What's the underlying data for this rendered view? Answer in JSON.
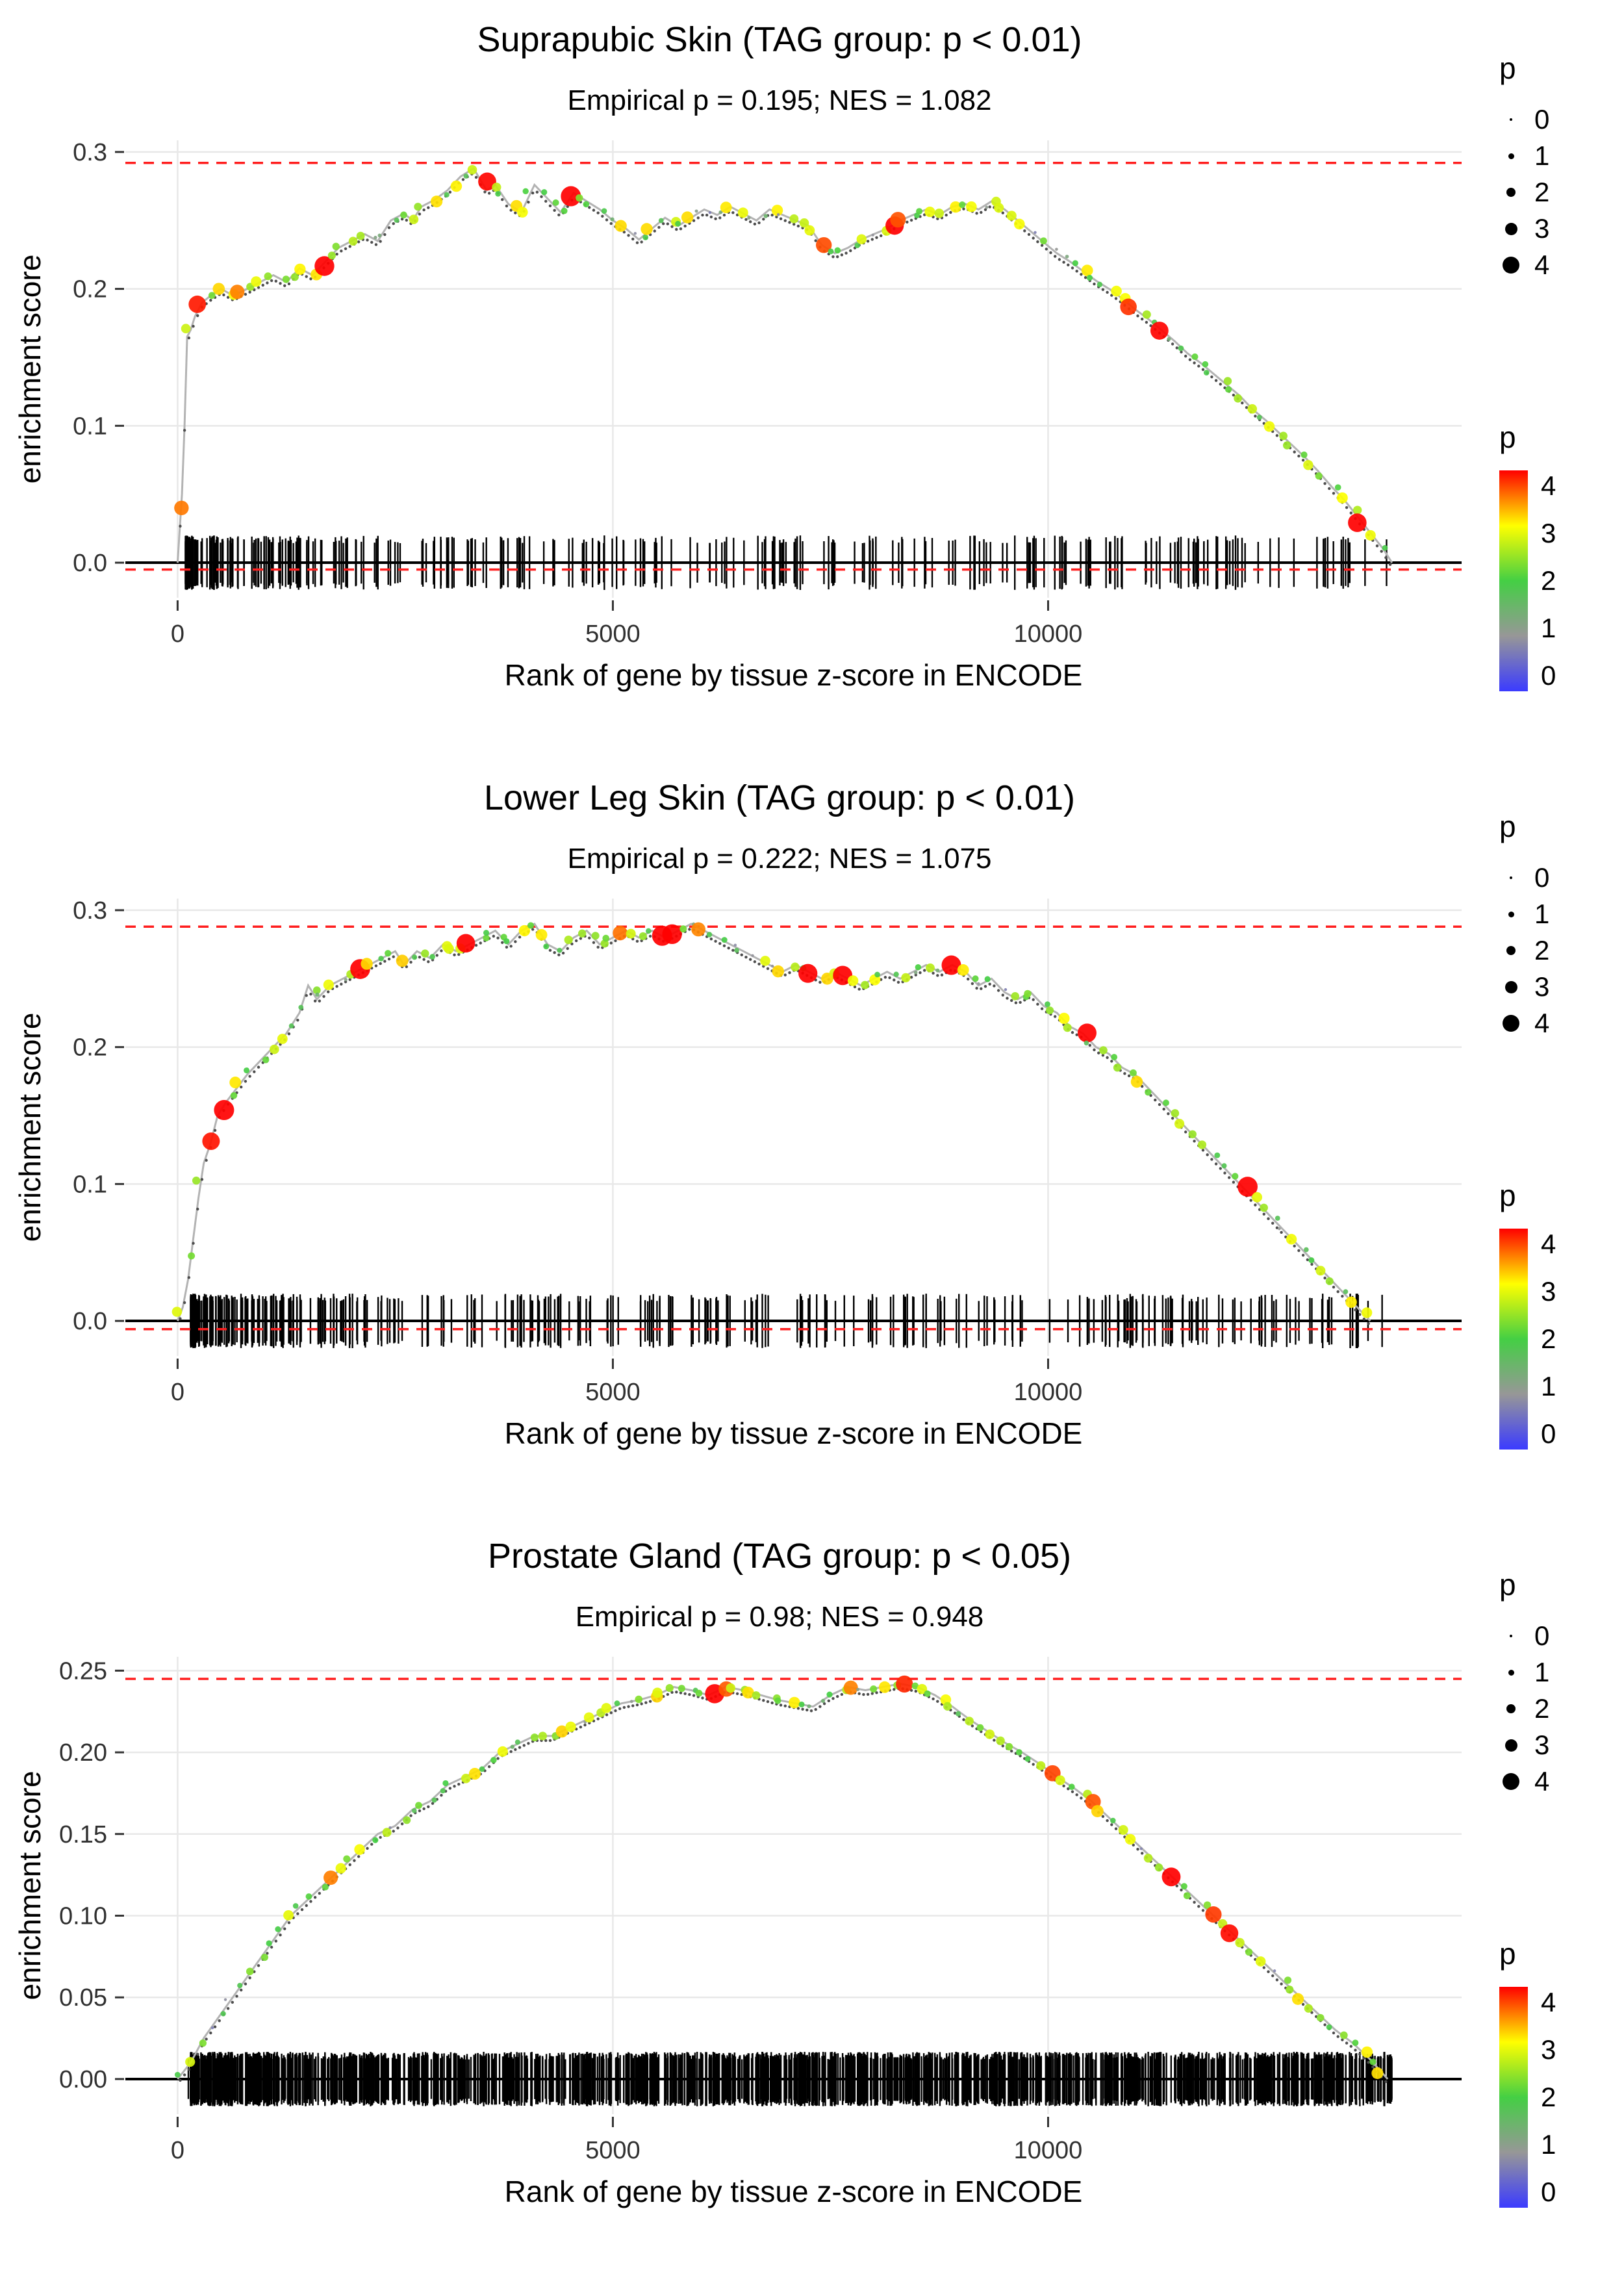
{
  "colors": {
    "dashed_line": "#ff1f1f",
    "curve_line": "#b3b3b3",
    "small_dot": "#4d4d4d",
    "rug": "#000000",
    "gridline": "#e8e8e8",
    "axis_text": "#303030",
    "zero_line": "#000000",
    "colormap_stops": [
      [
        "0",
        "#3b3bff"
      ],
      [
        "1",
        "#979797"
      ],
      [
        "2",
        "#44cf44"
      ],
      [
        "3",
        "#ffff00"
      ],
      [
        "4",
        "#ff0000"
      ]
    ]
  },
  "legend": {
    "size_title": "p",
    "size_labels": [
      "0",
      "1",
      "2",
      "3",
      "4"
    ],
    "color_title": "p",
    "color_labels": [
      "4",
      "3",
      "2",
      "1",
      "0"
    ]
  },
  "chart_data": [
    {
      "type": "line",
      "title": "Suprapubic Skin (TAG group: p < 0.01)",
      "subtitle": "Empirical p = 0.195; NES = 1.082",
      "xlabel": "Rank of gene by tissue z-score in ENCODE",
      "ylabel": "enrichment score",
      "legend_position": "right",
      "grid": true,
      "xlim": [
        -600,
        14750
      ],
      "ylim": [
        -0.0256,
        0.3085
      ],
      "x_ticks": [
        0,
        5000,
        10000
      ],
      "y_ticks": [
        0.0,
        0.1,
        0.2,
        0.3
      ],
      "y_tick_labels": [
        "0.0",
        "0.1",
        "0.2",
        "0.3"
      ],
      "dashed_max": 0.292,
      "dashed_min": -0.005,
      "rug_n": 340,
      "rug_cluster_frac": 0.3,
      "rug_cluster_start": 90,
      "rug_cluster_span": 1600,
      "rug_min": 100,
      "rug_max": 13900,
      "point_step": 115,
      "small_dot_step": 50,
      "curve": [
        [
          0,
          0
        ],
        [
          50,
          0.05
        ],
        [
          80,
          0.1
        ],
        [
          110,
          0.165
        ],
        [
          150,
          0.17
        ],
        [
          200,
          0.18
        ],
        [
          280,
          0.19
        ],
        [
          380,
          0.195
        ],
        [
          500,
          0.2
        ],
        [
          640,
          0.195
        ],
        [
          800,
          0.2
        ],
        [
          950,
          0.205
        ],
        [
          1100,
          0.21
        ],
        [
          1250,
          0.205
        ],
        [
          1400,
          0.215
        ],
        [
          1550,
          0.21
        ],
        [
          1700,
          0.22
        ],
        [
          1850,
          0.23
        ],
        [
          2000,
          0.235
        ],
        [
          2150,
          0.24
        ],
        [
          2300,
          0.235
        ],
        [
          2450,
          0.25
        ],
        [
          2600,
          0.255
        ],
        [
          2700,
          0.25
        ],
        [
          2800,
          0.26
        ],
        [
          2950,
          0.265
        ],
        [
          3100,
          0.272
        ],
        [
          3250,
          0.282
        ],
        [
          3400,
          0.288
        ],
        [
          3550,
          0.272
        ],
        [
          3650,
          0.276
        ],
        [
          3800,
          0.262
        ],
        [
          3950,
          0.256
        ],
        [
          4100,
          0.276
        ],
        [
          4250,
          0.266
        ],
        [
          4400,
          0.256
        ],
        [
          4550,
          0.27
        ],
        [
          4700,
          0.264
        ],
        [
          4850,
          0.258
        ],
        [
          5000,
          0.25
        ],
        [
          5150,
          0.244
        ],
        [
          5300,
          0.236
        ],
        [
          5450,
          0.244
        ],
        [
          5600,
          0.252
        ],
        [
          5750,
          0.246
        ],
        [
          5900,
          0.252
        ],
        [
          6050,
          0.258
        ],
        [
          6200,
          0.254
        ],
        [
          6350,
          0.26
        ],
        [
          6500,
          0.255
        ],
        [
          6650,
          0.25
        ],
        [
          6800,
          0.258
        ],
        [
          6950,
          0.254
        ],
        [
          7100,
          0.25
        ],
        [
          7250,
          0.246
        ],
        [
          7400,
          0.232
        ],
        [
          7550,
          0.226
        ],
        [
          7700,
          0.23
        ],
        [
          7850,
          0.236
        ],
        [
          8000,
          0.24
        ],
        [
          8150,
          0.244
        ],
        [
          8300,
          0.25
        ],
        [
          8450,
          0.254
        ],
        [
          8600,
          0.258
        ],
        [
          8750,
          0.254
        ],
        [
          8900,
          0.26
        ],
        [
          9050,
          0.262
        ],
        [
          9200,
          0.258
        ],
        [
          9350,
          0.264
        ],
        [
          9500,
          0.258
        ],
        [
          9650,
          0.25
        ],
        [
          9800,
          0.242
        ],
        [
          9950,
          0.234
        ],
        [
          10100,
          0.226
        ],
        [
          10250,
          0.22
        ],
        [
          10400,
          0.213
        ],
        [
          10550,
          0.206
        ],
        [
          10700,
          0.2
        ],
        [
          10850,
          0.193
        ],
        [
          11000,
          0.185
        ],
        [
          11150,
          0.178
        ],
        [
          11300,
          0.17
        ],
        [
          11450,
          0.162
        ],
        [
          11600,
          0.153
        ],
        [
          11750,
          0.146
        ],
        [
          11900,
          0.138
        ],
        [
          12050,
          0.13
        ],
        [
          12200,
          0.122
        ],
        [
          12350,
          0.112
        ],
        [
          12500,
          0.104
        ],
        [
          12650,
          0.095
        ],
        [
          12800,
          0.086
        ],
        [
          12950,
          0.077
        ],
        [
          13100,
          0.067
        ],
        [
          13250,
          0.056
        ],
        [
          13400,
          0.046
        ],
        [
          13550,
          0.034
        ],
        [
          13700,
          0.022
        ],
        [
          13850,
          0.01
        ],
        [
          13950,
          0
        ]
      ]
    },
    {
      "type": "line",
      "title": "Lower Leg Skin (TAG group: p < 0.01)",
      "subtitle": "Empirical p = 0.222; NES = 1.075",
      "xlabel": "Rank of gene by tissue z-score in ENCODE",
      "ylabel": "enrichment score",
      "legend_position": "right",
      "grid": true,
      "xlim": [
        -600,
        14750
      ],
      "ylim": [
        -0.0256,
        0.3085
      ],
      "x_ticks": [
        0,
        5000,
        10000
      ],
      "y_ticks": [
        0.0,
        0.1,
        0.2,
        0.3
      ],
      "y_tick_labels": [
        "0.0",
        "0.1",
        "0.2",
        "0.3"
      ],
      "dashed_max": 0.288,
      "dashed_min": -0.006,
      "rug_n": 360,
      "rug_cluster_frac": 0.32,
      "rug_cluster_start": 150,
      "rug_cluster_span": 2200,
      "rug_min": 120,
      "rug_max": 13850,
      "point_step": 115,
      "small_dot_step": 50,
      "curve": [
        [
          0,
          0
        ],
        [
          60,
          0.01
        ],
        [
          120,
          0.03
        ],
        [
          180,
          0.06
        ],
        [
          240,
          0.09
        ],
        [
          300,
          0.115
        ],
        [
          380,
          0.13
        ],
        [
          460,
          0.15
        ],
        [
          560,
          0.16
        ],
        [
          680,
          0.17
        ],
        [
          800,
          0.18
        ],
        [
          950,
          0.19
        ],
        [
          1100,
          0.2
        ],
        [
          1250,
          0.21
        ],
        [
          1400,
          0.225
        ],
        [
          1500,
          0.245
        ],
        [
          1600,
          0.235
        ],
        [
          1750,
          0.245
        ],
        [
          1900,
          0.25
        ],
        [
          2050,
          0.255
        ],
        [
          2200,
          0.26
        ],
        [
          2350,
          0.265
        ],
        [
          2500,
          0.27
        ],
        [
          2600,
          0.26
        ],
        [
          2750,
          0.27
        ],
        [
          2900,
          0.265
        ],
        [
          3050,
          0.275
        ],
        [
          3200,
          0.27
        ],
        [
          3350,
          0.275
        ],
        [
          3500,
          0.28
        ],
        [
          3650,
          0.285
        ],
        [
          3800,
          0.275
        ],
        [
          3950,
          0.285
        ],
        [
          4100,
          0.29
        ],
        [
          4250,
          0.275
        ],
        [
          4400,
          0.27
        ],
        [
          4550,
          0.28
        ],
        [
          4700,
          0.285
        ],
        [
          4850,
          0.275
        ],
        [
          5000,
          0.28
        ],
        [
          5150,
          0.285
        ],
        [
          5300,
          0.28
        ],
        [
          5450,
          0.285
        ],
        [
          5600,
          0.28
        ],
        [
          5750,
          0.285
        ],
        [
          5900,
          0.29
        ],
        [
          6050,
          0.285
        ],
        [
          6200,
          0.28
        ],
        [
          6350,
          0.275
        ],
        [
          6500,
          0.27
        ],
        [
          6650,
          0.265
        ],
        [
          6800,
          0.26
        ],
        [
          6950,
          0.255
        ],
        [
          7100,
          0.26
        ],
        [
          7250,
          0.255
        ],
        [
          7400,
          0.25
        ],
        [
          7550,
          0.255
        ],
        [
          7700,
          0.25
        ],
        [
          7850,
          0.245
        ],
        [
          8000,
          0.25
        ],
        [
          8150,
          0.255
        ],
        [
          8300,
          0.25
        ],
        [
          8450,
          0.255
        ],
        [
          8600,
          0.26
        ],
        [
          8750,
          0.255
        ],
        [
          8900,
          0.26
        ],
        [
          9050,
          0.255
        ],
        [
          9200,
          0.245
        ],
        [
          9350,
          0.25
        ],
        [
          9500,
          0.24
        ],
        [
          9650,
          0.235
        ],
        [
          9800,
          0.24
        ],
        [
          9950,
          0.23
        ],
        [
          10100,
          0.225
        ],
        [
          10250,
          0.215
        ],
        [
          10400,
          0.21
        ],
        [
          10550,
          0.2
        ],
        [
          10700,
          0.195
        ],
        [
          10850,
          0.185
        ],
        [
          11000,
          0.18
        ],
        [
          11150,
          0.17
        ],
        [
          11300,
          0.16
        ],
        [
          11450,
          0.15
        ],
        [
          11600,
          0.14
        ],
        [
          11750,
          0.13
        ],
        [
          11900,
          0.12
        ],
        [
          12050,
          0.11
        ],
        [
          12200,
          0.1
        ],
        [
          12350,
          0.09
        ],
        [
          12500,
          0.08
        ],
        [
          12650,
          0.07
        ],
        [
          12800,
          0.06
        ],
        [
          12950,
          0.05
        ],
        [
          13100,
          0.04
        ],
        [
          13250,
          0.03
        ],
        [
          13400,
          0.02
        ],
        [
          13550,
          0.01
        ],
        [
          13700,
          0
        ]
      ]
    },
    {
      "type": "line",
      "title": "Prostate Gland (TAG group: p < 0.05)",
      "subtitle": "Empirical p = 0.98; NES = 0.948",
      "xlabel": "Rank of gene by tissue z-score in ENCODE",
      "ylabel": "enrichment score",
      "legend_position": "right",
      "grid": true,
      "xlim": [
        -600,
        14750
      ],
      "ylim": [
        -0.0215,
        0.2585
      ],
      "x_ticks": [
        0,
        5000,
        10000
      ],
      "y_ticks": [
        0.0,
        0.05,
        0.1,
        0.15,
        0.2,
        0.25
      ],
      "y_tick_labels": [
        "0.00",
        "0.05",
        "0.10",
        "0.15",
        "0.20",
        "0.25"
      ],
      "dashed_max": 0.245,
      "dashed_min": null,
      "rug_n": 1600,
      "rug_cluster_frac": 0.1,
      "rug_cluster_start": 150,
      "rug_cluster_span": 2000,
      "rug_min": 120,
      "rug_max": 13950,
      "point_step": 115,
      "small_dot_step": 50,
      "curve": [
        [
          0,
          0
        ],
        [
          150,
          0.01
        ],
        [
          300,
          0.025
        ],
        [
          500,
          0.04
        ],
        [
          700,
          0.055
        ],
        [
          900,
          0.07
        ],
        [
          1100,
          0.085
        ],
        [
          1300,
          0.1
        ],
        [
          1500,
          0.11
        ],
        [
          1700,
          0.12
        ],
        [
          1900,
          0.13
        ],
        [
          2100,
          0.14
        ],
        [
          2300,
          0.15
        ],
        [
          2500,
          0.155
        ],
        [
          2700,
          0.165
        ],
        [
          2900,
          0.17
        ],
        [
          3100,
          0.18
        ],
        [
          3300,
          0.185
        ],
        [
          3500,
          0.19
        ],
        [
          3700,
          0.2
        ],
        [
          3900,
          0.205
        ],
        [
          4100,
          0.21
        ],
        [
          4300,
          0.21
        ],
        [
          4500,
          0.215
        ],
        [
          4700,
          0.22
        ],
        [
          4900,
          0.225
        ],
        [
          5100,
          0.23
        ],
        [
          5300,
          0.232
        ],
        [
          5500,
          0.235
        ],
        [
          5700,
          0.24
        ],
        [
          5900,
          0.238
        ],
        [
          6100,
          0.235
        ],
        [
          6300,
          0.24
        ],
        [
          6500,
          0.238
        ],
        [
          6700,
          0.235
        ],
        [
          6900,
          0.232
        ],
        [
          7100,
          0.23
        ],
        [
          7300,
          0.228
        ],
        [
          7500,
          0.235
        ],
        [
          7700,
          0.24
        ],
        [
          7900,
          0.238
        ],
        [
          8100,
          0.24
        ],
        [
          8300,
          0.242
        ],
        [
          8500,
          0.24
        ],
        [
          8700,
          0.235
        ],
        [
          8900,
          0.228
        ],
        [
          9100,
          0.22
        ],
        [
          9300,
          0.213
        ],
        [
          9500,
          0.206
        ],
        [
          9700,
          0.2
        ],
        [
          9900,
          0.193
        ],
        [
          10100,
          0.185
        ],
        [
          10300,
          0.178
        ],
        [
          10500,
          0.17
        ],
        [
          10700,
          0.16
        ],
        [
          10900,
          0.15
        ],
        [
          11100,
          0.14
        ],
        [
          11300,
          0.13
        ],
        [
          11500,
          0.12
        ],
        [
          11700,
          0.11
        ],
        [
          11900,
          0.1
        ],
        [
          12100,
          0.09
        ],
        [
          12300,
          0.08
        ],
        [
          12500,
          0.07
        ],
        [
          12700,
          0.06
        ],
        [
          12900,
          0.05
        ],
        [
          13100,
          0.04
        ],
        [
          13300,
          0.03
        ],
        [
          13500,
          0.022
        ],
        [
          13700,
          0.012
        ],
        [
          13900,
          0
        ]
      ]
    }
  ]
}
